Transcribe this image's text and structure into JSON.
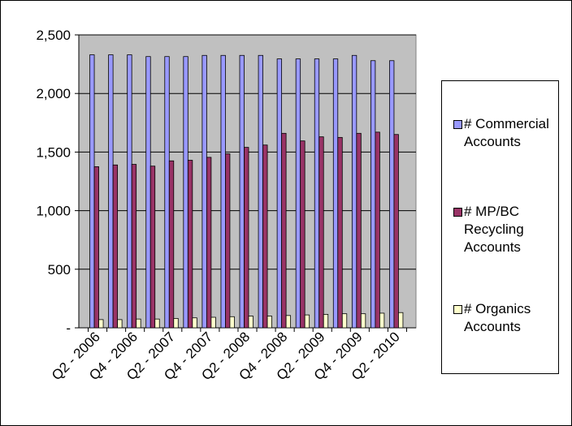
{
  "chart_data": {
    "type": "bar",
    "categories": [
      "Q2 - 2006",
      "Q3 - 2006",
      "Q4 - 2006",
      "Q1 - 2007",
      "Q2 - 2007",
      "Q3 - 2007",
      "Q4 - 2007",
      "Q1 - 2008",
      "Q2 - 2008",
      "Q3 - 2008",
      "Q4 - 2008",
      "Q1 - 2009",
      "Q2 - 2009",
      "Q3 - 2009",
      "Q4 - 2009",
      "Q1 - 2010",
      "Q2 - 2010"
    ],
    "x_tick_labels_shown": [
      "Q2 - 2006",
      "Q4 - 2006",
      "Q2 - 2007",
      "Q4 - 2007",
      "Q2 - 2008",
      "Q4 - 2008",
      "Q2 - 2009",
      "Q4 - 2009",
      "Q2 - 2010"
    ],
    "series": [
      {
        "name": "# Commercial Accounts",
        "color": "#9999ff",
        "values": [
          2330,
          2330,
          2330,
          2315,
          2315,
          2315,
          2325,
          2325,
          2325,
          2325,
          2295,
          2295,
          2295,
          2295,
          2325,
          2280,
          2280
        ]
      },
      {
        "name": "# MP/BC Recycling Accounts",
        "color": "#993366",
        "values": [
          1375,
          1390,
          1395,
          1380,
          1425,
          1430,
          1455,
          1485,
          1540,
          1560,
          1660,
          1595,
          1630,
          1625,
          1660,
          1670,
          1650
        ]
      },
      {
        "name": "# Organics Accounts",
        "color": "#ffffcc",
        "values": [
          70,
          70,
          75,
          75,
          80,
          85,
          90,
          95,
          100,
          100,
          105,
          110,
          115,
          120,
          120,
          125,
          130
        ]
      }
    ],
    "ylim": [
      0,
      2500
    ],
    "y_ticks": [
      0,
      500,
      1000,
      1500,
      2000,
      2500
    ],
    "y_tick_labels": [
      "-",
      "500",
      "1,000",
      "1,500",
      "2,000",
      "2,500"
    ],
    "title": "",
    "xlabel": "",
    "ylabel": "",
    "grid": "horizontal",
    "plot_background": "#c0c0c0",
    "legend_position": "right"
  }
}
